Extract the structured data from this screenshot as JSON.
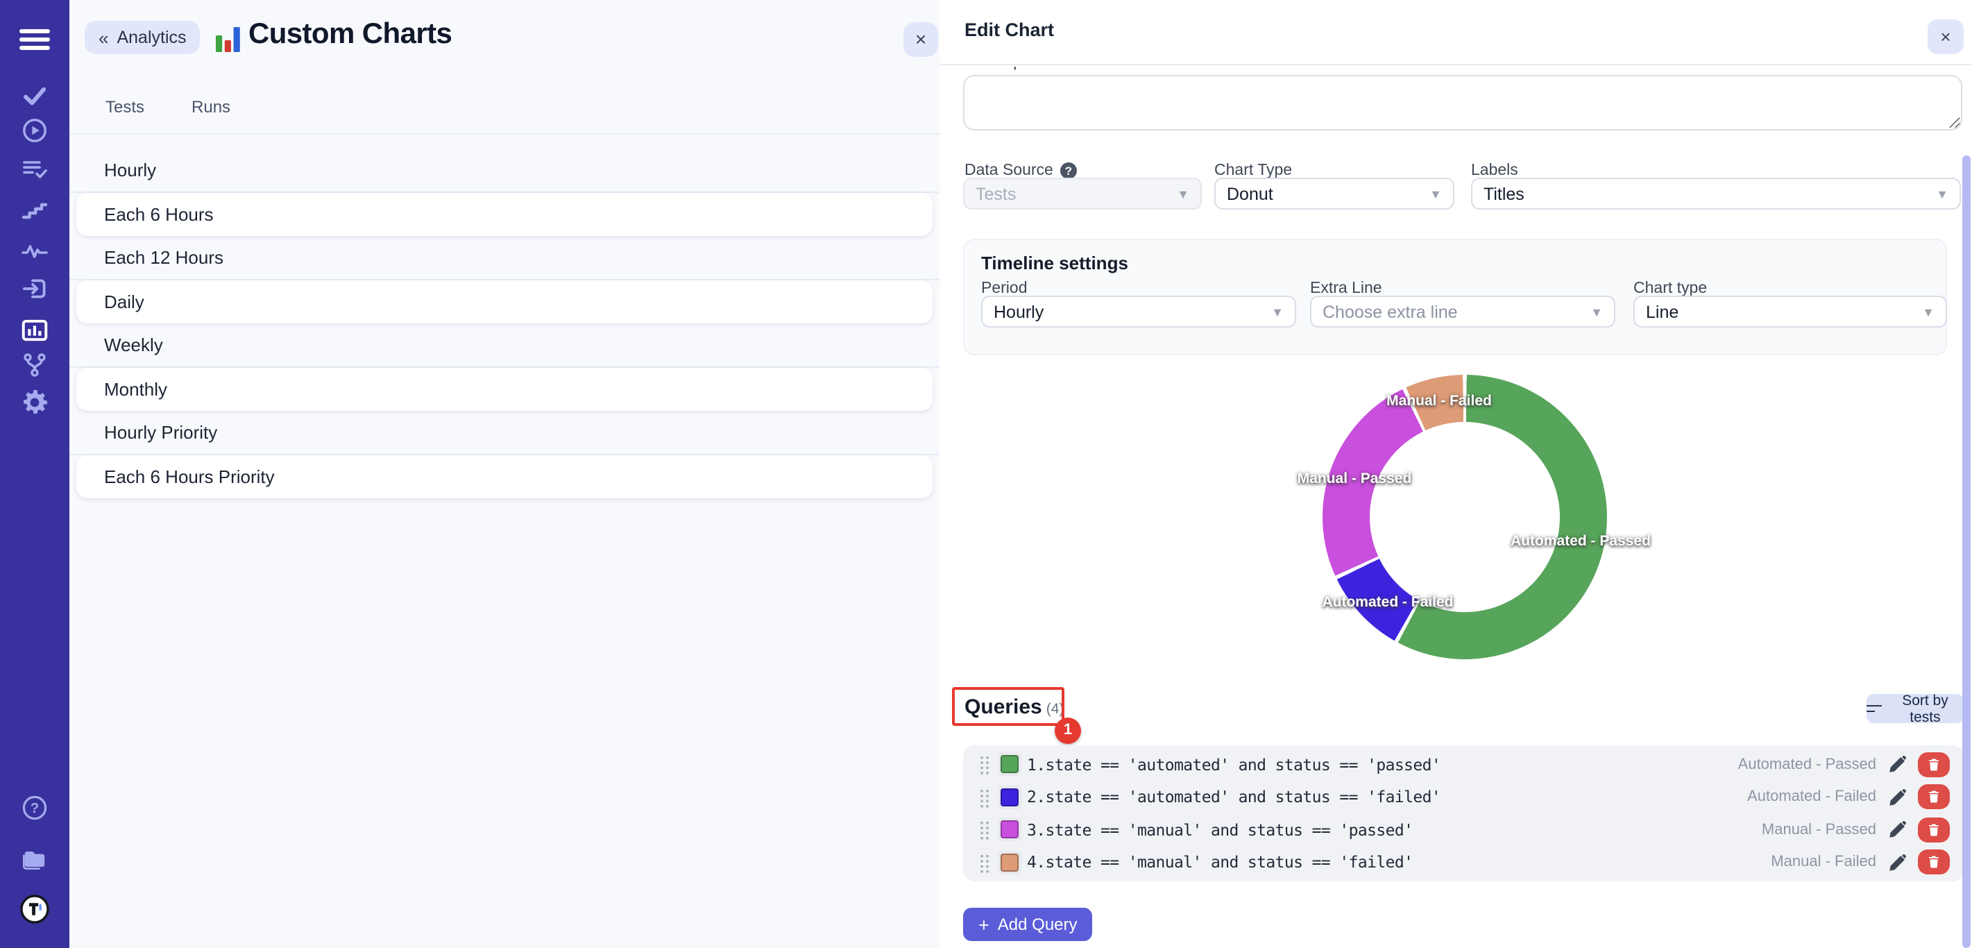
{
  "sidebar": {
    "icons": [
      "menu",
      "tests-check",
      "runs-play",
      "test-plans",
      "milestones",
      "pulse",
      "import",
      "analytics",
      "branches",
      "settings",
      "help",
      "projects",
      "testomat-logo"
    ],
    "active": "analytics"
  },
  "left_panel": {
    "back_chevron": "«",
    "back_button": "Analytics",
    "title": "Custom Charts",
    "close_label": "×",
    "tabs": [
      {
        "label": "Tests"
      },
      {
        "label": "Runs"
      }
    ],
    "items": [
      "Hourly",
      "Each 6 Hours",
      "Each 12 Hours",
      "Daily",
      "Weekly",
      "Monthly",
      "Hourly Priority",
      "Each 6 Hours Priority"
    ]
  },
  "edit_chart": {
    "title": "Edit Chart",
    "close_label": "×",
    "description_label": "Description",
    "data_source": {
      "label": "Data Source",
      "help": "?",
      "value": "Tests"
    },
    "chart_type": {
      "label": "Chart Type",
      "value": "Donut"
    },
    "labels_field": {
      "label": "Labels",
      "value": "Titles"
    },
    "timeline": {
      "heading": "Timeline settings",
      "period": {
        "label": "Period",
        "value": "Hourly"
      },
      "extra_line": {
        "label": "Extra Line",
        "placeholder": "Choose extra line"
      },
      "chart_type": {
        "label": "Chart type",
        "value": "Line"
      }
    },
    "queries": {
      "heading": "Queries",
      "count": "(4)",
      "annotation_badge": "1",
      "sort_button": "Sort by tests",
      "rows": [
        {
          "index": "1.",
          "color": "#57a55a",
          "query": "state == 'automated' and status == 'passed'",
          "label": "Automated - Passed"
        },
        {
          "index": "2.",
          "color": "#3d23de",
          "query": "state == 'automated' and status == 'failed'",
          "label": "Automated - Failed"
        },
        {
          "index": "3.",
          "color": "#c94fdd",
          "query": "state == 'manual' and status == 'passed'",
          "label": "Manual - Passed"
        },
        {
          "index": "4.",
          "color": "#dd9b76",
          "query": "state == 'manual' and status == 'failed'",
          "label": "Manual - Failed"
        }
      ],
      "add_plus": "+",
      "add_button": "Add Query"
    }
  },
  "chart_data": {
    "type": "donut",
    "labels": [
      "Automated - Passed",
      "Automated - Failed",
      "Manual - Passed",
      "Manual - Failed"
    ],
    "values_percent": [
      58,
      10,
      25,
      7
    ],
    "colors": [
      "#57a55a",
      "#3d23de",
      "#c94fdd",
      "#dd9b76"
    ],
    "label_style": "white bold labels drawn on slices"
  },
  "colors": {
    "accent": "#5a5cd8",
    "sidebar": "#39319d",
    "annotation_red": "#e6392f",
    "delete_red": "#dd4c46",
    "lavender_button": "#e2e6fb",
    "scrollbar": "#b5b9f2"
  }
}
